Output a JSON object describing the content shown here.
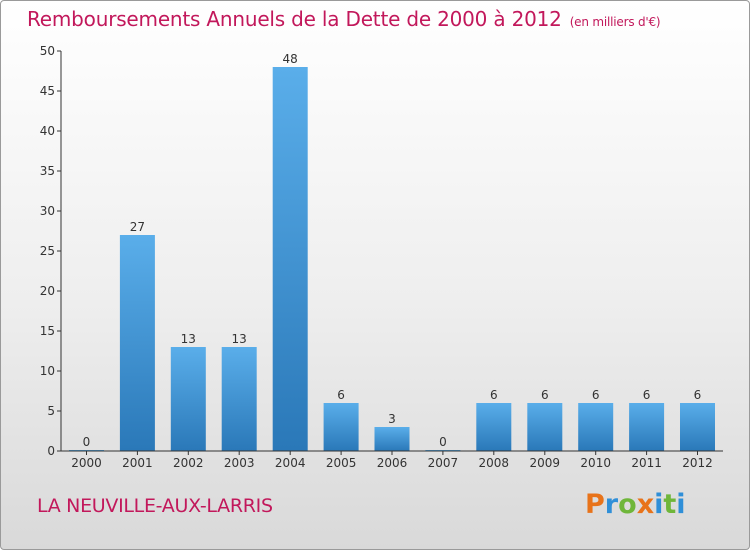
{
  "header": {
    "title": "Remboursements Annuels de la Dette de 2000 à 2012",
    "unit": "(en milliers d'€)"
  },
  "footer": {
    "town": "LA NEUVILLE-AUX-LARRIS",
    "logo_letters": [
      "P",
      "r",
      "o",
      "x",
      "i",
      "t",
      "i"
    ],
    "logo_colors": [
      "#e8731a",
      "#2f8fd8",
      "#6fb63a",
      "#e8731a",
      "#2f8fd8",
      "#6fb63a",
      "#2f8fd8"
    ]
  },
  "colors": {
    "bar_top": "#5aaeea",
    "bar_bottom": "#2a78b8",
    "title": "#c2185b",
    "axis": "#333333"
  },
  "chart_data": {
    "type": "bar",
    "categories": [
      "2000",
      "2001",
      "2002",
      "2003",
      "2004",
      "2005",
      "2006",
      "2007",
      "2008",
      "2009",
      "2010",
      "2011",
      "2012"
    ],
    "values": [
      0,
      27,
      13,
      13,
      48,
      6,
      3,
      0,
      6,
      6,
      6,
      6,
      6
    ],
    "data_labels": [
      "0",
      "27",
      "13",
      "13",
      "48",
      "6",
      "3",
      "0",
      "6",
      "6",
      "6",
      "6",
      "6"
    ],
    "ylim": [
      0,
      50
    ],
    "yticks": [
      0,
      5,
      10,
      15,
      20,
      25,
      30,
      35,
      40,
      45,
      50
    ],
    "grid": false,
    "xlabel": "",
    "ylabel": ""
  }
}
